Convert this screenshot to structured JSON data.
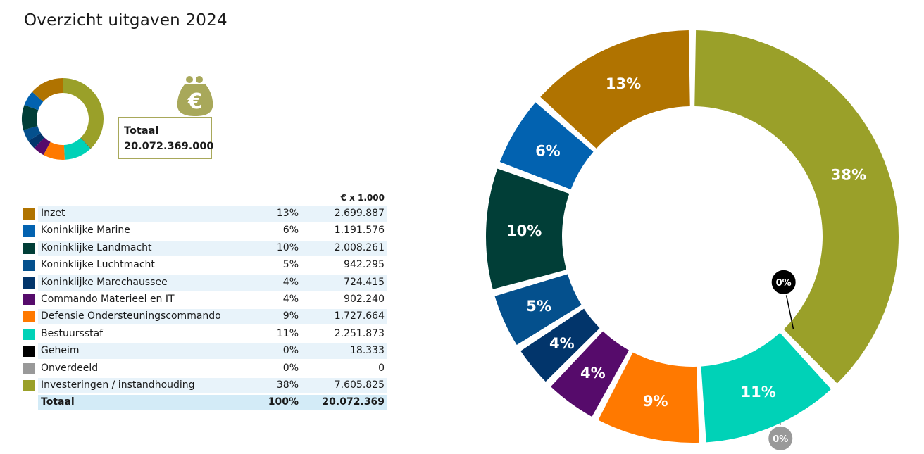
{
  "title": "Overzicht uitgaven 2024",
  "total_box": {
    "label": "Totaal",
    "value": "20.072.369.000"
  },
  "purse_symbol": "€",
  "table": {
    "unit_header": "€ x 1.000",
    "total_row": {
      "label": "Totaal",
      "pct": "100%",
      "amount": "20.072.369"
    }
  },
  "chart_data": {
    "type": "pie",
    "donut": true,
    "categories": [
      "Inzet",
      "Koninklijke Marine",
      "Koninklijke Landmacht",
      "Koninklijke Luchtmacht",
      "Koninklijke Marechaussee",
      "Commando Materieel en IT",
      "Defensie Ondersteuningscommando",
      "Bestuursstaf",
      "Geheim",
      "Onverdeeld",
      "Investeringen / instandhouding"
    ],
    "values": [
      2699887,
      1191576,
      2008261,
      942295,
      724415,
      902240,
      1727664,
      2251873,
      18333,
      0,
      7605825
    ],
    "percent_labels": [
      "13%",
      "6%",
      "10%",
      "5%",
      "4%",
      "4%",
      "9%",
      "11%",
      "0%",
      "0%",
      "38%"
    ],
    "amount_labels": [
      "2.699.887",
      "1.191.576",
      "2.008.261",
      "942.295",
      "724.415",
      "902.240",
      "1.727.664",
      "2.251.873",
      "18.333",
      "0",
      "7.605.825"
    ],
    "colors": [
      "#b07300",
      "#0262b0",
      "#013e37",
      "#04508d",
      "#02356b",
      "#560b6b",
      "#ff7900",
      "#00d2b7",
      "#000000",
      "#999999",
      "#9aa029"
    ],
    "value_unit": "€ x 1.000"
  }
}
